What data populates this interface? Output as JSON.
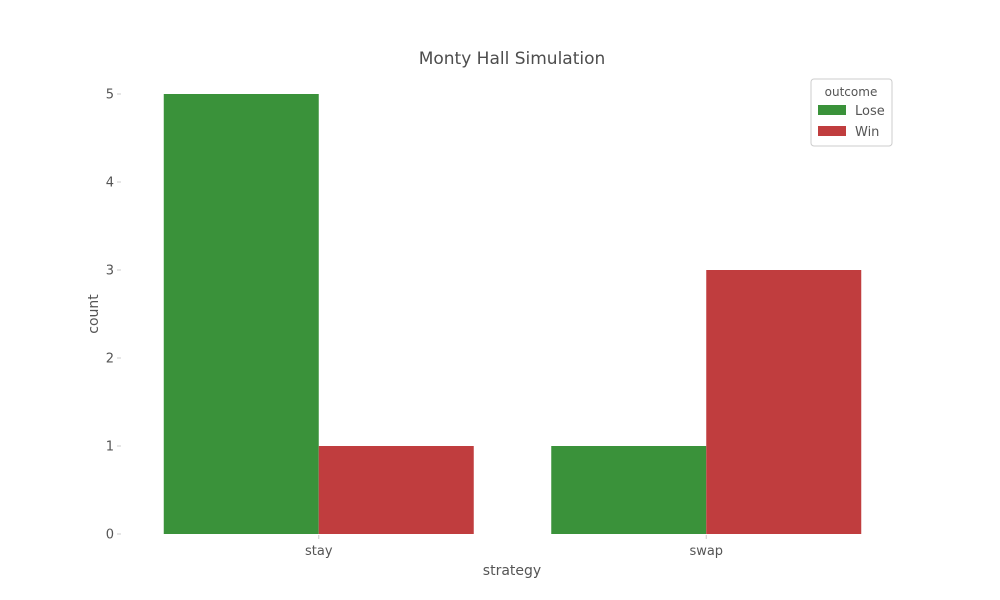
{
  "chart_data": {
    "type": "bar",
    "title": "Monty Hall Simulation",
    "xlabel": "strategy",
    "ylabel": "count",
    "categories": [
      "stay",
      "swap"
    ],
    "series": [
      {
        "name": "Lose",
        "values": [
          5,
          1
        ],
        "color": "#3a923a"
      },
      {
        "name": "Win",
        "values": [
          1,
          3
        ],
        "color": "#c03d3e"
      }
    ],
    "ylim": [
      0,
      5
    ],
    "yticks": [
      0,
      1,
      2,
      3,
      4,
      5
    ],
    "legend": {
      "title": "outcome",
      "placement": "top-right"
    },
    "grid": false
  }
}
